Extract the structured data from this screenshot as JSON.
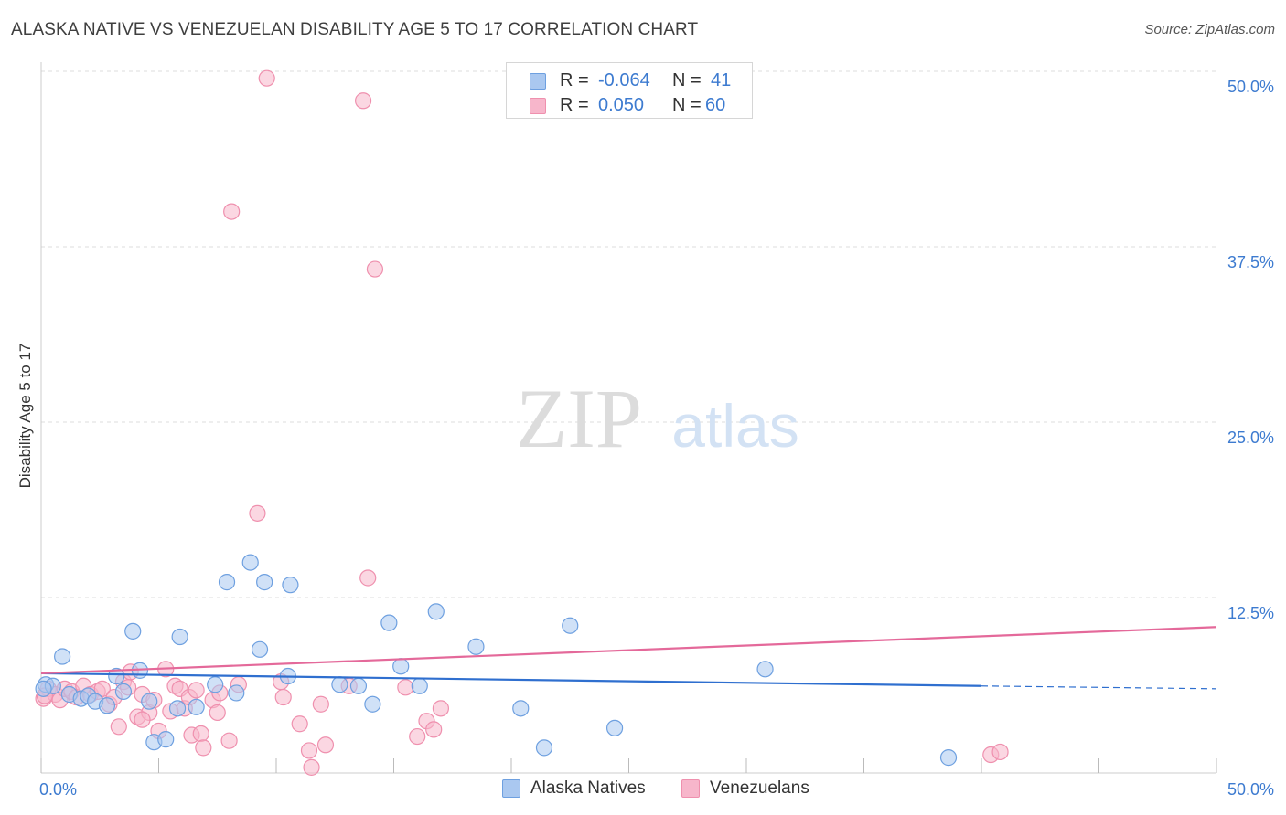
{
  "header": {
    "title": "ALASKA NATIVE VS VENEZUELAN DISABILITY AGE 5 TO 17 CORRELATION CHART",
    "source": "Source: ZipAtlas.com"
  },
  "legend": {
    "rows": [
      {
        "r_label": "R =",
        "r_value": "-0.064",
        "n_label": "N =",
        "n_value": "41"
      },
      {
        "r_label": "R =",
        "r_value": "0.050",
        "n_label": "N =",
        "n_value": "60"
      }
    ]
  },
  "watermark": {
    "zip": "ZIP",
    "atlas": "atlas"
  },
  "colors": {
    "series1_fill": "#aac8f0",
    "series1_stroke": "#6ea0e0",
    "series1_line": "#2f6fcf",
    "series2_fill": "#f7b6cb",
    "series2_stroke": "#ef90ae",
    "series2_line": "#e4699a",
    "tick_label": "#3d7bd0",
    "grid": "#dddddd"
  },
  "chart_data": {
    "type": "scatter",
    "title": "ALASKA NATIVE VS VENEZUELAN DISABILITY AGE 5 TO 17 CORRELATION CHART",
    "xlabel": "",
    "ylabel": "Disability Age 5 to 17",
    "xlim": [
      0,
      50
    ],
    "ylim": [
      0,
      50
    ],
    "x_tick_labels": [
      "0.0%",
      "50.0%"
    ],
    "y_ticks": [
      12.5,
      25.0,
      37.5,
      50.0
    ],
    "y_tick_labels": [
      "12.5%",
      "25.0%",
      "37.5%",
      "50.0%"
    ],
    "grid": true,
    "series": [
      {
        "name": "Alaska Natives",
        "r": -0.064,
        "n": 41,
        "trend": {
          "x": [
            0,
            40
          ],
          "y": [
            7.1,
            6.2
          ],
          "dashed_extension_to": [
            50,
            6.0
          ]
        },
        "points": [
          [
            0.2,
            6.3
          ],
          [
            0.5,
            6.2
          ],
          [
            0.9,
            8.3
          ],
          [
            1.2,
            5.6
          ],
          [
            1.7,
            5.3
          ],
          [
            2.0,
            5.5
          ],
          [
            2.3,
            5.1
          ],
          [
            2.8,
            4.8
          ],
          [
            3.2,
            6.9
          ],
          [
            3.5,
            5.8
          ],
          [
            3.9,
            10.1
          ],
          [
            4.2,
            7.3
          ],
          [
            4.6,
            5.1
          ],
          [
            4.8,
            2.2
          ],
          [
            5.3,
            2.4
          ],
          [
            5.8,
            4.6
          ],
          [
            5.9,
            9.7
          ],
          [
            6.6,
            4.7
          ],
          [
            7.4,
            6.3
          ],
          [
            7.9,
            13.6
          ],
          [
            8.3,
            5.7
          ],
          [
            8.9,
            15.0
          ],
          [
            9.3,
            8.8
          ],
          [
            9.5,
            13.6
          ],
          [
            10.5,
            6.9
          ],
          [
            10.6,
            13.4
          ],
          [
            12.7,
            6.3
          ],
          [
            13.5,
            6.2
          ],
          [
            14.1,
            4.9
          ],
          [
            14.8,
            10.7
          ],
          [
            15.3,
            7.6
          ],
          [
            16.1,
            6.2
          ],
          [
            16.8,
            11.5
          ],
          [
            18.5,
            9.0
          ],
          [
            20.4,
            4.6
          ],
          [
            21.4,
            1.8
          ],
          [
            22.5,
            10.5
          ],
          [
            24.4,
            3.2
          ],
          [
            30.8,
            7.4
          ],
          [
            38.6,
            1.1
          ],
          [
            0.1,
            6.0
          ]
        ]
      },
      {
        "name": "Venezuelans",
        "r": 0.05,
        "n": 60,
        "trend": {
          "x": [
            0,
            50
          ],
          "y": [
            7.1,
            10.4
          ]
        },
        "points": [
          [
            0.1,
            5.3
          ],
          [
            0.3,
            6.0
          ],
          [
            0.6,
            5.6
          ],
          [
            0.8,
            5.2
          ],
          [
            1.0,
            6.0
          ],
          [
            1.3,
            5.8
          ],
          [
            1.5,
            5.4
          ],
          [
            1.8,
            6.2
          ],
          [
            2.1,
            5.6
          ],
          [
            2.4,
            5.8
          ],
          [
            2.6,
            6.0
          ],
          [
            2.9,
            4.9
          ],
          [
            3.1,
            5.4
          ],
          [
            3.3,
            3.3
          ],
          [
            3.5,
            6.5
          ],
          [
            3.7,
            6.1
          ],
          [
            3.8,
            7.2
          ],
          [
            4.1,
            4.0
          ],
          [
            4.3,
            5.6
          ],
          [
            4.6,
            4.3
          ],
          [
            4.8,
            5.2
          ],
          [
            5.0,
            3.0
          ],
          [
            5.3,
            7.4
          ],
          [
            5.5,
            4.4
          ],
          [
            5.7,
            6.2
          ],
          [
            5.9,
            6.0
          ],
          [
            6.1,
            4.6
          ],
          [
            6.3,
            5.4
          ],
          [
            6.4,
            2.7
          ],
          [
            6.6,
            5.9
          ],
          [
            6.8,
            2.8
          ],
          [
            6.9,
            1.8
          ],
          [
            7.3,
            5.2
          ],
          [
            7.5,
            4.3
          ],
          [
            7.6,
            5.7
          ],
          [
            8.0,
            2.3
          ],
          [
            8.4,
            6.3
          ],
          [
            8.1,
            40.0
          ],
          [
            9.2,
            18.5
          ],
          [
            9.6,
            49.5
          ],
          [
            10.2,
            6.5
          ],
          [
            10.3,
            5.4
          ],
          [
            11.0,
            3.5
          ],
          [
            11.4,
            1.6
          ],
          [
            11.5,
            0.4
          ],
          [
            11.9,
            4.9
          ],
          [
            12.1,
            2.0
          ],
          [
            13.1,
            6.2
          ],
          [
            13.7,
            47.9
          ],
          [
            13.9,
            13.9
          ],
          [
            14.2,
            35.9
          ],
          [
            15.5,
            6.1
          ],
          [
            16.0,
            2.6
          ],
          [
            16.4,
            3.7
          ],
          [
            16.7,
            3.1
          ],
          [
            17.0,
            4.6
          ],
          [
            40.4,
            1.3
          ],
          [
            40.8,
            1.5
          ],
          [
            0.15,
            5.5
          ],
          [
            4.3,
            3.8
          ]
        ]
      }
    ]
  },
  "bottom_legend": {
    "items": [
      {
        "label": "Alaska Natives"
      },
      {
        "label": "Venezuelans"
      }
    ]
  }
}
